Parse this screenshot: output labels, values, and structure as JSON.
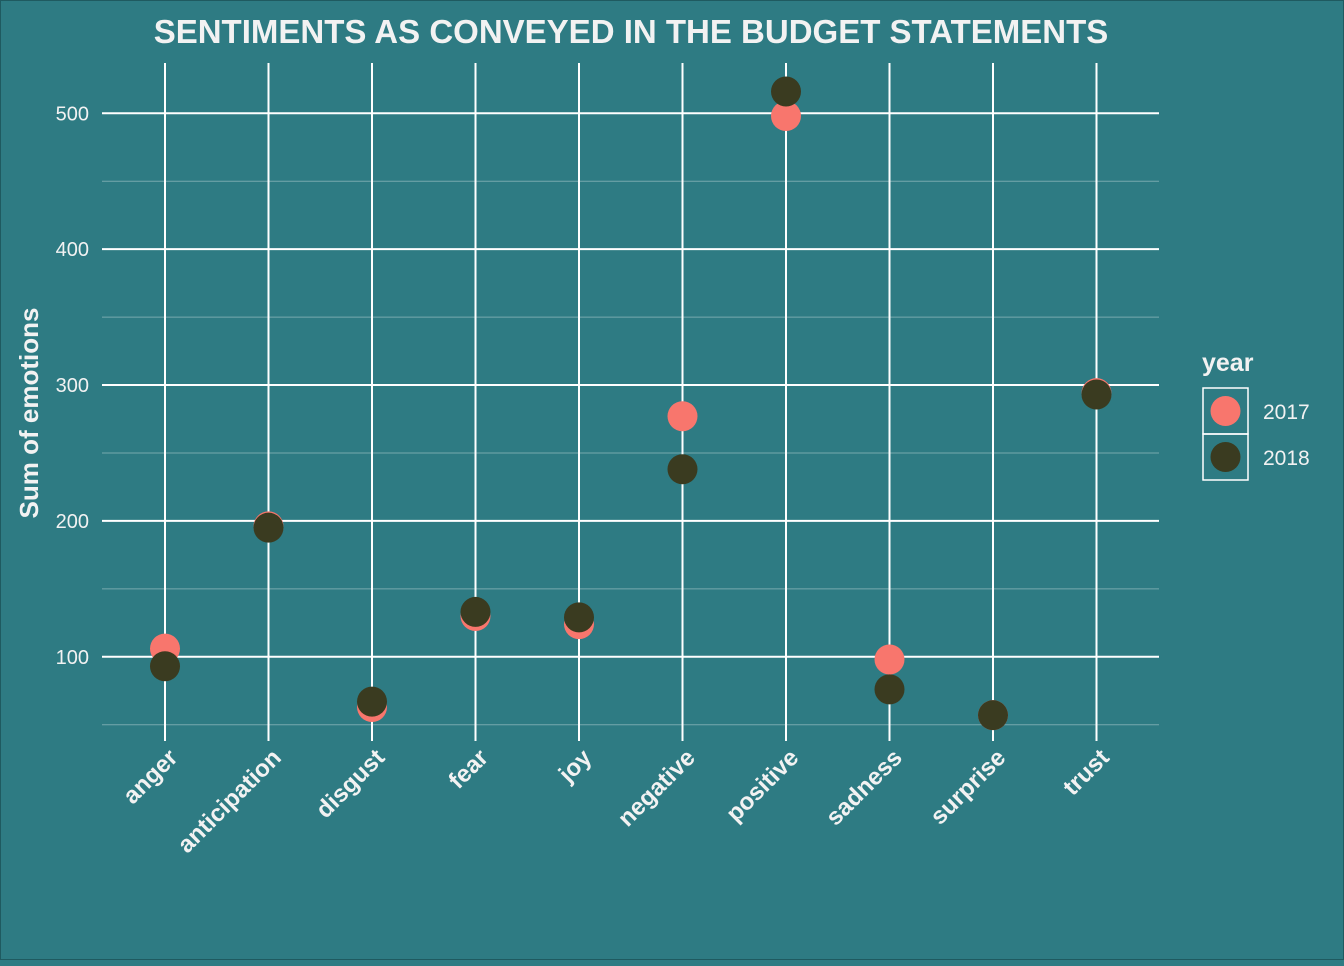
{
  "chart_data": {
    "type": "scatter",
    "title": "SENTIMENTS AS CONVEYED IN THE BUDGET STATEMENTS",
    "xlabel": "",
    "ylabel": "Sum of emotions",
    "categories": [
      "anger",
      "anticipation",
      "disgust",
      "fear",
      "joy",
      "negative",
      "positive",
      "sadness",
      "surprise",
      "trust"
    ],
    "yticks": [
      100,
      200,
      300,
      400,
      500
    ],
    "ylim": [
      38,
      537
    ],
    "grid": true,
    "legend": {
      "title": "year",
      "position": "right"
    },
    "series": [
      {
        "name": "2017",
        "color": "#f8766d",
        "values": [
          106,
          196,
          63,
          130,
          124,
          277,
          498,
          98,
          57,
          294
        ]
      },
      {
        "name": "2018",
        "color": "#3a3b20",
        "values": [
          93,
          195,
          67,
          133,
          129,
          238,
          516,
          76,
          57,
          293
        ]
      }
    ],
    "colors": {
      "background": "#2e7b83",
      "grid": "#ffffff",
      "text": "#f2f2f2"
    }
  }
}
